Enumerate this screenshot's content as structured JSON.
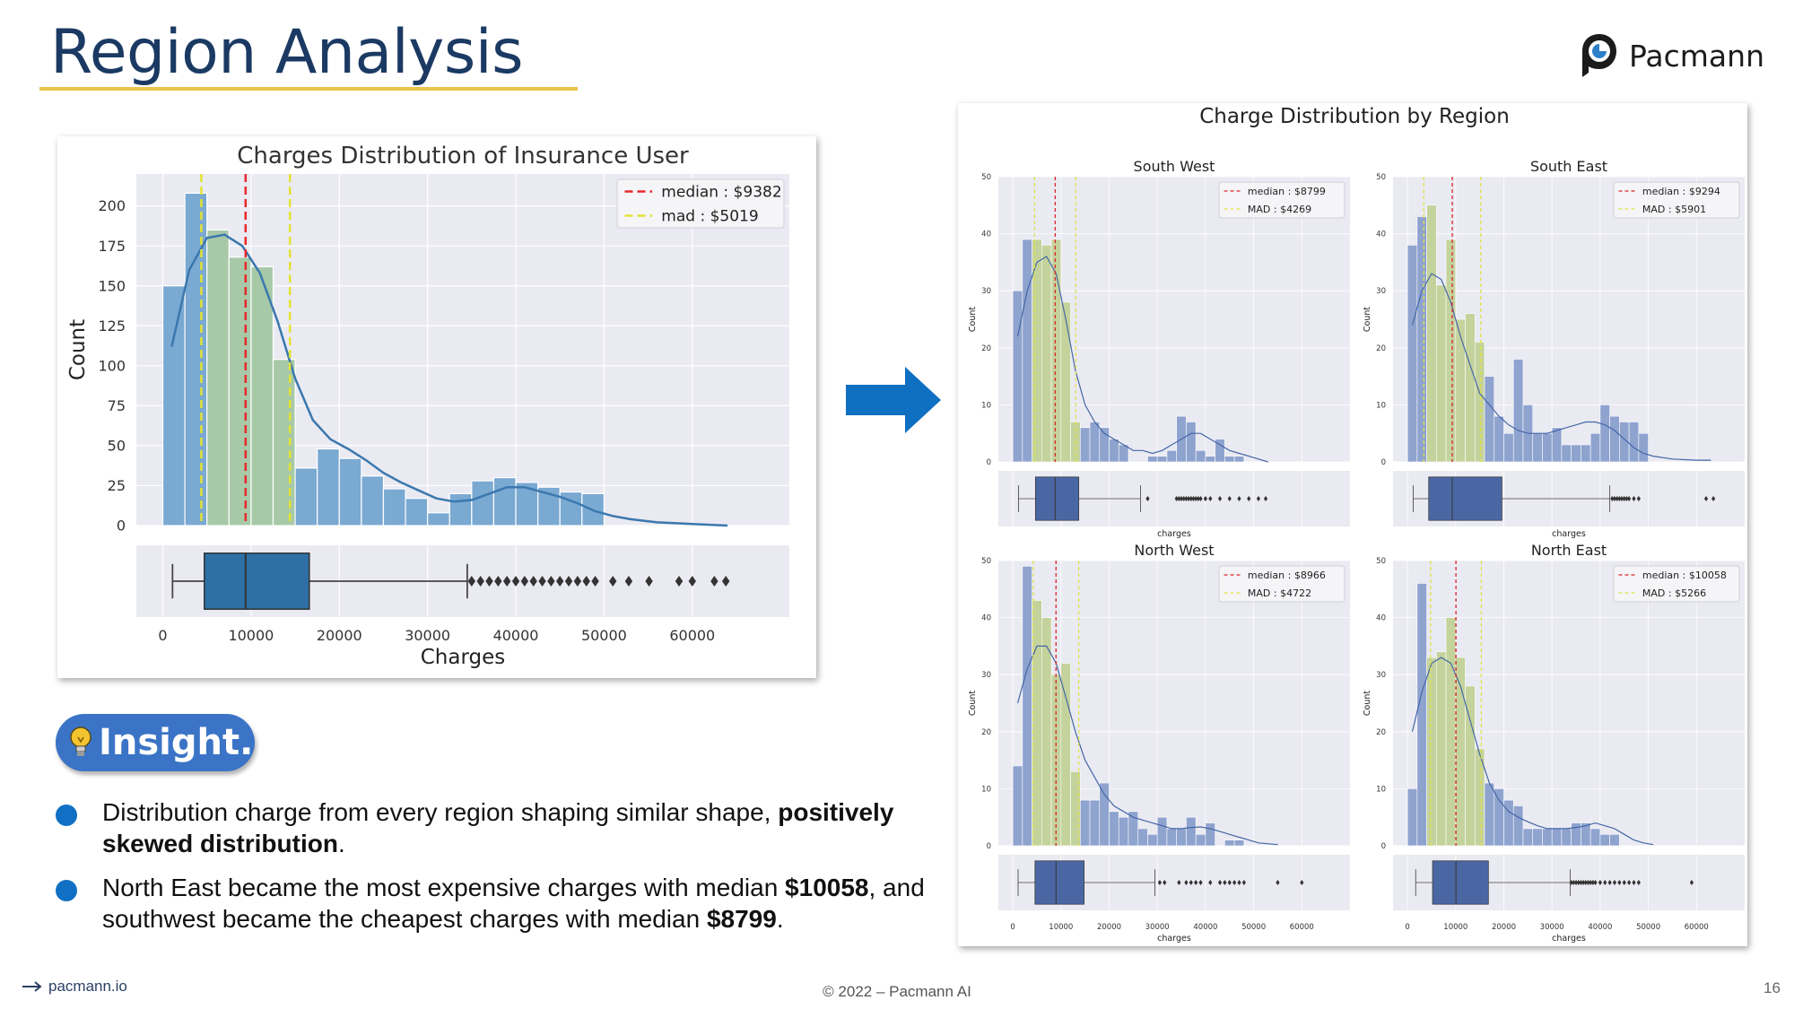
{
  "slide": {
    "title": "Region Analysis",
    "logo_text": "Pacmann",
    "insight_label": "Insight.",
    "bullets": [
      {
        "parts": [
          "Distribution charge from every region shaping similar shape, ",
          "positively skewed distribution",
          "."
        ]
      },
      {
        "parts": [
          "North East became the most expensive charges with median ",
          "$10058",
          ", and southwest became the cheapest charges with median ",
          "$8799",
          "."
        ]
      }
    ],
    "footer_link": "pacmann.io",
    "footer_copy": "© 2022 – Pacmann AI",
    "page_number": "16",
    "colors": {
      "title": "#1b3a63",
      "underline": "#e9c44c",
      "accent": "#1170c4",
      "pill": "#3b74c6"
    },
    "icons": [
      "arrow-right-icon",
      "lightbulb-icon",
      "pacmann-logo-icon"
    ]
  },
  "chart_data": [
    {
      "type": "bar",
      "title": "Charges Distribution of Insurance User",
      "xlabel": "Charges",
      "ylabel": "Count",
      "xlim": [
        -3000,
        71000
      ],
      "ylim": [
        0,
        220
      ],
      "xticks": [
        0,
        10000,
        20000,
        30000,
        40000,
        50000,
        60000
      ],
      "yticks": [
        0,
        25,
        50,
        75,
        100,
        125,
        150,
        175,
        200
      ],
      "bin_edges": [
        0,
        2500,
        5000,
        7500,
        10000,
        12500,
        15000,
        17500,
        20000,
        22500,
        25000,
        27500,
        30000,
        32500,
        35000,
        37500,
        40000,
        42500,
        45000,
        47500,
        50000
      ],
      "counts": [
        150,
        208,
        185,
        168,
        162,
        104,
        36,
        48,
        42,
        31,
        23,
        17,
        8,
        20,
        28,
        30,
        27,
        24,
        21,
        20
      ],
      "kde": {
        "x": [
          1000,
          3000,
          5000,
          7000,
          9000,
          11000,
          13000,
          15000,
          17000,
          19000,
          21000,
          23000,
          25000,
          27000,
          29000,
          31000,
          33000,
          35000,
          37000,
          39000,
          41000,
          43000,
          45000,
          47000,
          49000,
          51000,
          53000,
          56000,
          60000,
          64000
        ],
        "y": [
          112,
          160,
          180,
          182,
          175,
          158,
          128,
          92,
          66,
          54,
          48,
          41,
          33,
          27,
          22,
          17,
          15,
          16,
          20,
          24,
          24,
          21,
          18,
          14,
          9,
          6,
          4,
          2,
          1,
          0
        ]
      },
      "median_value": 9382,
      "mad_value": 5019,
      "lines": [
        {
          "label": "median : $9382",
          "x": [
            9382
          ],
          "color": "#e8282b"
        },
        {
          "label": "mad : $5019",
          "x": [
            4363,
            14401
          ],
          "color": "#e3e234"
        }
      ],
      "legend_position": "top-right",
      "grid": true,
      "box": {
        "whisker_low": 1100,
        "q1": 4700,
        "median": 9382,
        "q3": 16600,
        "whisker_high": 34500,
        "outliers": [
          35000,
          36000,
          37000,
          38000,
          39000,
          40000,
          41000,
          42000,
          43000,
          44000,
          45000,
          46000,
          47000,
          48000,
          49000,
          51000,
          52800,
          55100,
          58500,
          60000,
          62500,
          63800
        ]
      },
      "colors": {
        "bar": "#7aa9d2",
        "bar_highlight": "#a7c9a8",
        "kde": "#3a78ae",
        "box": "#2e6fa6",
        "plot_bg": "#eaeaf2"
      }
    },
    {
      "type": "bar",
      "title": "Charge Distribution by Region",
      "xlabel": "charges",
      "ylabel": "Count",
      "xticks": [
        0,
        10000,
        20000,
        30000,
        40000,
        50000,
        60000
      ],
      "yticks": [
        0,
        10,
        20,
        30,
        40,
        50
      ],
      "xlim": [
        -3000,
        70000
      ],
      "ylim": [
        0,
        50
      ],
      "bin_width": 2000,
      "grid": true,
      "legend_position": "top-right",
      "colors": {
        "bar": "#8fa3cf",
        "bar_highlight": "#c4d29c",
        "kde": "#4467a6",
        "box": "#4a67a3",
        "median_line": "#d9262a",
        "mad_line": "#e0e24a",
        "plot_bg": "#eaeaf2"
      },
      "panels": [
        {
          "name": "South West",
          "median_label": "median : $8799",
          "mad_label": "MAD : $4269",
          "median": 8799,
          "mad": 4269,
          "counts": [
            30,
            39,
            39,
            38,
            39,
            28,
            7,
            6,
            7,
            6,
            4,
            3,
            0,
            0,
            1,
            1,
            2,
            8,
            7,
            2,
            1,
            4,
            1,
            1
          ],
          "kde": {
            "x": [
              1000,
              3000,
              5000,
              7000,
              9000,
              11000,
              13000,
              15000,
              17000,
              19000,
              21000,
              23000,
              25000,
              27000,
              29000,
              31000,
              33000,
              35000,
              37000,
              39000,
              41000,
              43000,
              45000,
              47000,
              49000,
              51000,
              53000
            ],
            "y": [
              22,
              30,
              35,
              36,
              33,
              25,
              16,
              10,
              7,
              5,
              4,
              3,
              2,
              2,
              1.5,
              2,
              3,
              4,
              5,
              5,
              4,
              3,
              2,
              1.5,
              1,
              0.5,
              0
            ]
          },
          "box": {
            "whisker_low": 1200,
            "q1": 4700,
            "median": 8799,
            "q3": 13700,
            "whisker_high": 26500,
            "outliers": [
              28000,
              34000,
              34500,
              35000,
              35500,
              36000,
              36500,
              37000,
              37500,
              38000,
              38500,
              39000,
              40000,
              41000,
              43000,
              45000,
              47000,
              49000,
              51000,
              52500
            ]
          }
        },
        {
          "name": "South East",
          "median_label": "median : $9294",
          "mad_label": "MAD : $5901",
          "median": 9294,
          "mad": 5901,
          "counts": [
            38,
            43,
            45,
            31,
            39,
            25,
            26,
            21,
            15,
            8,
            5,
            18,
            10,
            5,
            5,
            6,
            3,
            3,
            3,
            5,
            10,
            8,
            7,
            7,
            5,
            0,
            0,
            0,
            0,
            0,
            0,
            0,
            0,
            0,
            0
          ],
          "kde": {
            "x": [
              1000,
              3000,
              5000,
              7000,
              9000,
              11000,
              13000,
              15000,
              17000,
              19000,
              21000,
              23000,
              25000,
              27000,
              29000,
              31000,
              33000,
              35000,
              37000,
              39000,
              41000,
              43000,
              45000,
              47000,
              49000,
              51000,
              55000,
              60000,
              63000
            ],
            "y": [
              24,
              30,
              33,
              32,
              28,
              22,
              17,
              12,
              10,
              8,
              6.5,
              5.5,
              5,
              5,
              5,
              5.5,
              6,
              6.5,
              7,
              7,
              6.5,
              5.5,
              4,
              2.5,
              1.5,
              1,
              0.5,
              0.3,
              0.3
            ]
          },
          "box": {
            "whisker_low": 1200,
            "q1": 4400,
            "median": 9294,
            "q3": 19600,
            "whisker_high": 42000,
            "outliers": [
              42500,
              43000,
              43500,
              44000,
              44500,
              45000,
              45500,
              46000,
              47000,
              48000,
              62000,
              63500
            ]
          }
        },
        {
          "name": "North West",
          "median_label": "median : $8966",
          "mad_label": "MAD : $4722",
          "median": 8966,
          "mad": 4722,
          "counts": [
            14,
            49,
            43,
            40,
            30,
            32,
            13,
            8,
            8,
            11,
            6,
            5,
            6,
            3,
            2,
            5,
            3,
            3,
            5,
            2,
            4,
            0,
            1,
            1
          ],
          "kde": {
            "x": [
              1000,
              3000,
              5000,
              7000,
              9000,
              11000,
              13000,
              15000,
              17000,
              19000,
              21000,
              23000,
              25000,
              27000,
              29000,
              31000,
              33000,
              35000,
              37000,
              39000,
              41000,
              43000,
              45000,
              47000,
              49000,
              51000,
              55000
            ],
            "y": [
              25,
              31,
              35,
              35,
              32,
              26,
              20,
              15,
              12,
              9,
              7,
              6,
              5,
              4.5,
              4,
              3.5,
              3,
              3,
              3.2,
              3.3,
              3,
              2.5,
              2,
              1.5,
              1,
              0.5,
              0.2
            ]
          },
          "box": {
            "whisker_low": 1100,
            "q1": 4600,
            "median": 8966,
            "q3": 14800,
            "whisker_high": 29500,
            "outliers": [
              30500,
              31500,
              34500,
              36000,
              37000,
              38000,
              39000,
              41000,
              43000,
              44000,
              45000,
              46000,
              47000,
              48000,
              55000,
              60000
            ]
          }
        },
        {
          "name": "North East",
          "median_label": "median : $10058",
          "mad_label": "MAD : $5266",
          "median": 10058,
          "mad": 5266,
          "counts": [
            10,
            46,
            33,
            34,
            40,
            33,
            28,
            17,
            11,
            10,
            8,
            7,
            3,
            3,
            3,
            3,
            3,
            4,
            4,
            3,
            2,
            2
          ],
          "kde": {
            "x": [
              1000,
              3000,
              5000,
              7000,
              9000,
              11000,
              13000,
              15000,
              17000,
              19000,
              21000,
              23000,
              25000,
              27000,
              29000,
              31000,
              33000,
              35000,
              37000,
              39000,
              41000,
              43000,
              45000,
              47000,
              49000,
              51000
            ],
            "y": [
              20,
              27,
              32,
              33,
              32,
              28,
              22,
              16,
              11,
              8,
              6,
              5,
              4.2,
              3.5,
              3,
              3,
              3,
              3.2,
              3.5,
              4,
              3.5,
              3,
              2,
              1,
              0.5,
              0.2
            ]
          },
          "box": {
            "whisker_low": 1700,
            "q1": 5200,
            "median": 10058,
            "q3": 16800,
            "whisker_high": 33800,
            "outliers": [
              34000,
              34500,
              35000,
              35500,
              36000,
              36500,
              37000,
              37500,
              38000,
              38500,
              39000,
              40000,
              41000,
              42000,
              43000,
              44000,
              45000,
              46000,
              47000,
              48000,
              59000
            ]
          }
        }
      ]
    }
  ]
}
